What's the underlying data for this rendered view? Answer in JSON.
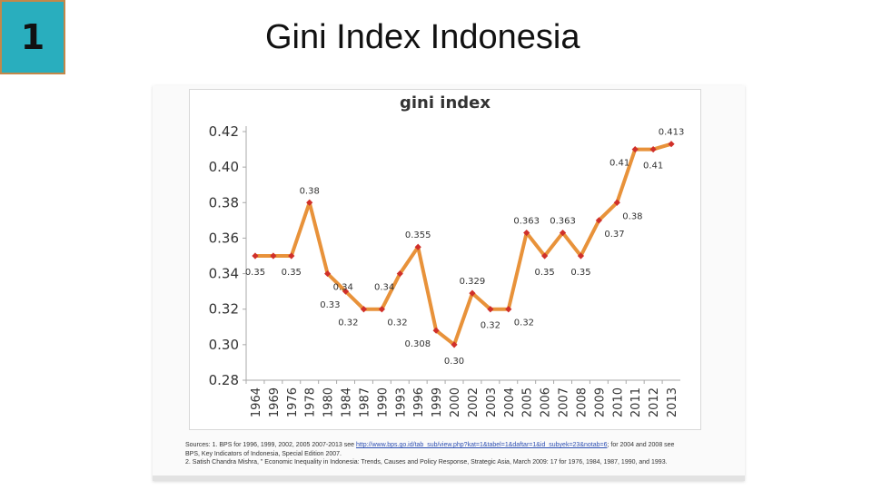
{
  "slide": {
    "number": "1",
    "title": "Gini Index Indonesia"
  },
  "chart_data": {
    "type": "line",
    "title": "gini index",
    "xlabel": "",
    "ylabel": "",
    "categories": [
      "1964",
      "1969",
      "1976",
      "1978",
      "1980",
      "1984",
      "1987",
      "1990",
      "1993",
      "1996",
      "1999",
      "2000",
      "2002",
      "2003",
      "2004",
      "2005",
      "2006",
      "2007",
      "2008",
      "2009",
      "2010",
      "2011",
      "2012",
      "2013"
    ],
    "series": [
      {
        "values": [
          0.35,
          0.35,
          0.35,
          0.38,
          0.34,
          0.33,
          0.32,
          0.32,
          0.34,
          0.355,
          0.308,
          0.3,
          0.329,
          0.32,
          0.32,
          0.363,
          0.35,
          0.363,
          0.35,
          0.37,
          0.38,
          0.41,
          0.41,
          0.413
        ]
      }
    ],
    "data_labels": [
      {
        "index": 0,
        "text": "0.35",
        "position": "below"
      },
      {
        "index": 2,
        "text": "0.35",
        "position": "below"
      },
      {
        "index": 3,
        "text": "0.38",
        "position": "above"
      },
      {
        "index": 4,
        "text": "0.34",
        "position": "right"
      },
      {
        "index": 5,
        "text": "0.33",
        "position": "left"
      },
      {
        "index": 6,
        "text": "0.32",
        "position": "left"
      },
      {
        "index": 7,
        "text": "0.32",
        "position": "right"
      },
      {
        "index": 8,
        "text": "0.34",
        "position": "left"
      },
      {
        "index": 9,
        "text": "0.355",
        "position": "above"
      },
      {
        "index": 10,
        "text": "0.308",
        "position": "left"
      },
      {
        "index": 11,
        "text": "0.30",
        "position": "below"
      },
      {
        "index": 12,
        "text": "0.329",
        "position": "above"
      },
      {
        "index": 13,
        "text": "0.32",
        "position": "below"
      },
      {
        "index": 15,
        "text": "0.363",
        "position": "above"
      },
      {
        "index": 14,
        "text": "0.32",
        "position": "right"
      },
      {
        "index": 16,
        "text": "0.35",
        "position": "below"
      },
      {
        "index": 17,
        "text": "0.363",
        "position": "above"
      },
      {
        "index": 18,
        "text": "0.35",
        "position": "below"
      },
      {
        "index": 19,
        "text": "0.37",
        "position": "right"
      },
      {
        "index": 20,
        "text": "0.38",
        "position": "right"
      },
      {
        "index": 21,
        "text": "0.41",
        "position": "left"
      },
      {
        "index": 22,
        "text": "0.41",
        "position": "below"
      },
      {
        "index": 23,
        "text": "0.413",
        "position": "above"
      }
    ],
    "ylim": [
      0.28,
      0.42
    ],
    "yticks": [
      "0.42",
      "0.40",
      "0.38",
      "0.36",
      "0.34",
      "0.32",
      "0.30",
      "0.28"
    ],
    "grid": false,
    "legend": "none",
    "colors": {
      "line": "#e8923a",
      "marker": "#d0302a",
      "axis": "#a8a8a8",
      "text": "#333333"
    }
  },
  "sources": {
    "line1_prefix": "Sources: 1. BPS for 1996, 1999, 2002, 2005 2007-2013 see ",
    "line1_link": "http://www.bps.go.id/tab_sub/view.php?kat=1&tabel=1&daftar=1&id_subyek=23&notab=6",
    "line1_suffix": "; for 2004 and 2008 see",
    "line2": "BPS, Key Indicators of Indonesia, Special Edition 2007.",
    "line3": "2. Satish Chandra Mishra, \" Economic Inequality in Indonesia: Trends, Causes and Policy Response, Strategic Asia, March 2009: 17 for 1976, 1984, 1987, 1990, and 1993."
  }
}
